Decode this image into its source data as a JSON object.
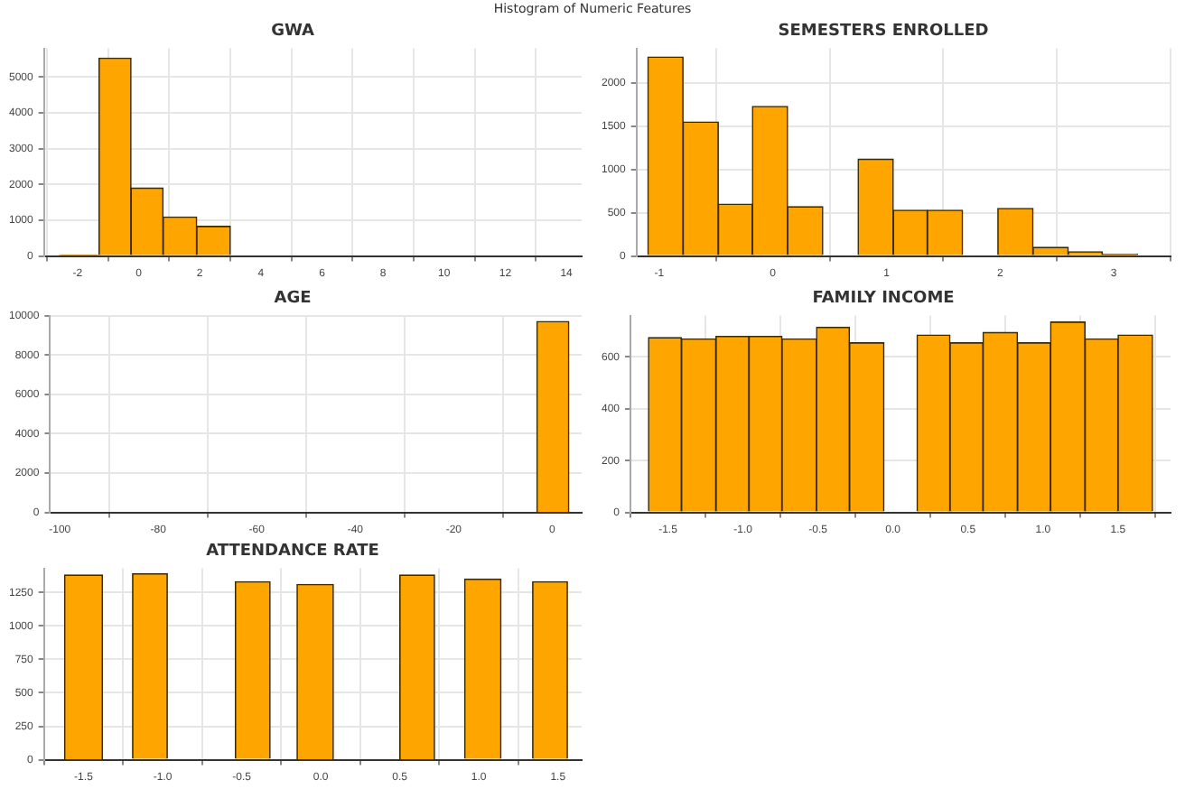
{
  "chart_data": [
    {
      "type": "histogram",
      "title": "GWA",
      "annotations": [
        "Histogram of Numeric Features"
      ],
      "color": "#ffa500",
      "grid": true,
      "bins": [
        -2.6,
        -1.3,
        -0.25,
        0.8,
        1.9,
        3.0
      ],
      "values": [
        30,
        5530,
        1900,
        1090,
        830
      ],
      "xlim": [
        -3.1,
        14.5
      ],
      "xticks": [
        -2,
        0,
        2,
        4,
        6,
        8,
        10,
        12,
        14
      ],
      "ylim": [
        0,
        5800
      ],
      "yticks": [
        0,
        1000,
        2000,
        3000,
        4000,
        5000
      ]
    },
    {
      "type": "histogram",
      "title": "SEMESTERS ENROLLED",
      "color": "#ffa500",
      "grid": true,
      "bins": [
        -1.1,
        -0.79,
        -0.48,
        -0.18,
        0.13,
        0.44,
        0.75,
        1.06,
        1.36,
        1.67,
        1.98,
        2.29,
        2.6,
        2.9,
        3.21
      ],
      "values": [
        2300,
        1550,
        600,
        1730,
        570,
        0,
        1120,
        530,
        530,
        0,
        550,
        100,
        50,
        20
      ],
      "xlim": [
        -1.2,
        3.5
      ],
      "xticks": [
        -1,
        0,
        1,
        2,
        3
      ],
      "ylim": [
        0,
        2400
      ],
      "yticks": [
        0,
        500,
        1000,
        1500,
        2000
      ]
    },
    {
      "type": "histogram",
      "title": "AGE",
      "color": "#ffa500",
      "grid": true,
      "bins": [
        -3.1,
        3.4
      ],
      "values": [
        9700
      ],
      "xlim": [
        -102,
        6
      ],
      "xticks": [
        -100,
        -80,
        -60,
        -40,
        -20,
        0
      ],
      "ylim": [
        0,
        10000
      ],
      "yticks": [
        0,
        2000,
        4000,
        6000,
        8000,
        10000
      ]
    },
    {
      "type": "histogram",
      "title": "FAMILY INCOME",
      "color": "#ffa500",
      "grid": true,
      "bins": [
        -1.63,
        -1.41,
        -1.18,
        -0.96,
        -0.74,
        -0.51,
        -0.29,
        -0.06,
        0.16,
        0.38,
        0.6,
        0.83,
        1.05,
        1.28,
        1.5,
        1.73
      ],
      "values": [
        675,
        670,
        680,
        680,
        670,
        715,
        655,
        0,
        685,
        655,
        695,
        655,
        735,
        670,
        685
      ],
      "xlim": [
        -1.75,
        1.85
      ],
      "xticks": [
        {
          "value": -1.5,
          "label": "-1.5"
        },
        {
          "value": -1,
          "label": "-1.0"
        },
        {
          "value": -0.5,
          "label": "-0.5"
        },
        {
          "value": 0,
          "label": "0.0"
        },
        {
          "value": 0.5,
          "label": "0.5"
        },
        {
          "value": 1,
          "label": "1.0"
        },
        {
          "value": 1.5,
          "label": "1.5"
        }
      ],
      "ylim": [
        0,
        760
      ],
      "yticks": [
        0,
        200,
        400,
        600
      ]
    },
    {
      "type": "histogram",
      "title": "ATTENDANCE RATE",
      "color": "#ffa500",
      "grid": true,
      "bins": [
        -1.62,
        -1.38,
        -1.19,
        -0.97,
        -0.54,
        -0.32,
        -0.15,
        0.08,
        0.5,
        0.72,
        0.91,
        1.14,
        1.34,
        1.56
      ],
      "values": [
        1380,
        0,
        1390,
        0,
        1330,
        0,
        1310,
        0,
        1380,
        0,
        1350,
        0,
        1330
      ],
      "xlim": [
        -1.75,
        1.65
      ],
      "xticks": [
        {
          "value": -1.5,
          "label": "-1.5"
        },
        {
          "value": -1,
          "label": "-1.0"
        },
        {
          "value": -0.5,
          "label": "-0.5"
        },
        {
          "value": 0,
          "label": "0.0"
        },
        {
          "value": 0.5,
          "label": "0.5"
        },
        {
          "value": 1,
          "label": "1.0"
        },
        {
          "value": 1.5,
          "label": "1.5"
        }
      ],
      "ylim": [
        0,
        1430
      ],
      "yticks": [
        0,
        250,
        500,
        750,
        1000,
        1250
      ]
    }
  ]
}
